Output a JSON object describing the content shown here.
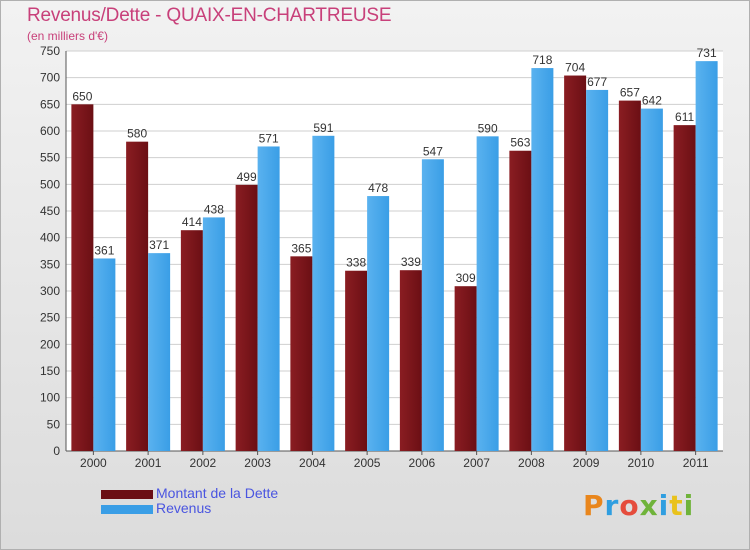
{
  "title": "Revenus/Dette - QUAIX-EN-CHARTREUSE",
  "subtitle": "(en milliers d'€)",
  "colors": {
    "dette": "#6b0f14",
    "revenus": "#3a9ee6",
    "title": "#c8407a",
    "legend_text": "#4a55e0"
  },
  "legend": {
    "dette_label": "Montant de la Dette",
    "revenus_label": "Revenus"
  },
  "logo": {
    "text": "Proxiti",
    "letter_colors": [
      "#e9861c",
      "#2f9ee0",
      "#e54c3c",
      "#6fb33a",
      "#2f9ee0",
      "#e9c21c",
      "#6fb33a"
    ]
  },
  "chart_data": {
    "type": "bar",
    "title": "Revenus/Dette - QUAIX-EN-CHARTREUSE",
    "subtitle": "(en milliers d'€)",
    "categories": [
      "2000",
      "2001",
      "2002",
      "2003",
      "2004",
      "2005",
      "2006",
      "2007",
      "2008",
      "2009",
      "2010",
      "2011"
    ],
    "series": [
      {
        "name": "Montant de la Dette",
        "values": [
          650,
          580,
          414,
          499,
          365,
          338,
          339,
          309,
          563,
          704,
          657,
          611
        ]
      },
      {
        "name": "Revenus",
        "values": [
          361,
          371,
          438,
          571,
          591,
          478,
          547,
          590,
          718,
          677,
          642,
          731
        ]
      }
    ],
    "ylim": [
      0,
      750
    ],
    "yticks": [
      0,
      50,
      100,
      150,
      200,
      250,
      300,
      350,
      400,
      450,
      500,
      550,
      600,
      650,
      700,
      750
    ],
    "grid": true,
    "legend_position": "bottom-left"
  }
}
